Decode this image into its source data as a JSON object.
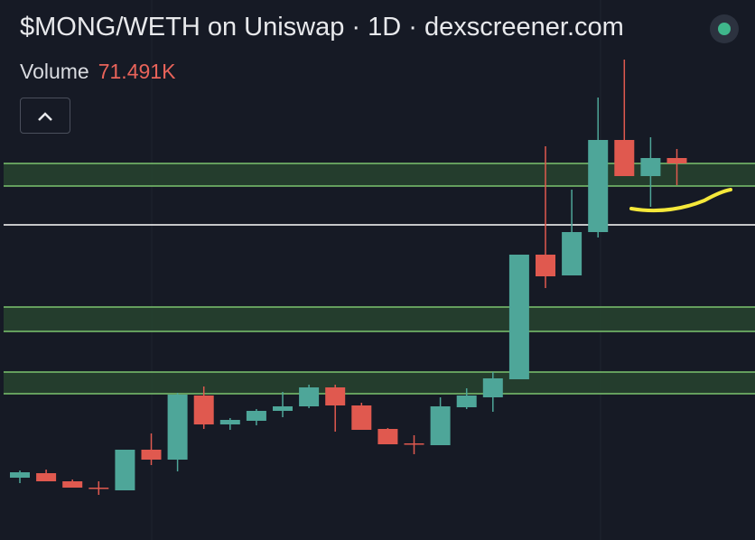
{
  "chart_data": {
    "type": "candlestick",
    "title": "$MONG/WETH on Uniswap · 1D · dexscreener.com",
    "volume_label": "Volume",
    "volume_value": "71.491K",
    "ylim": [
      0,
      598
    ],
    "up_color": "#4ea699",
    "down_color": "#e0594f",
    "open": [
      69,
      74,
      65,
      58,
      55,
      100,
      89,
      160,
      128,
      132,
      143,
      148,
      169,
      149,
      123,
      107,
      105,
      147,
      158,
      178,
      316,
      293,
      341,
      443,
      403,
      423
    ],
    "high": [
      77,
      78,
      67,
      65,
      100,
      118,
      163,
      170,
      135,
      145,
      164,
      172,
      172,
      152,
      124,
      116,
      158,
      168,
      186,
      316,
      436,
      388,
      490,
      532,
      446,
      433
    ],
    "low": [
      63,
      65,
      58,
      50,
      55,
      83,
      76,
      123,
      122,
      127,
      136,
      146,
      120,
      122,
      106,
      95,
      105,
      145,
      142,
      178,
      279,
      293,
      335,
      403,
      369,
      393
    ],
    "close": [
      75,
      65,
      58,
      57,
      100,
      89,
      161,
      128,
      133,
      143,
      148,
      169,
      149,
      122,
      106,
      106,
      148,
      160,
      179,
      316,
      292,
      341,
      443,
      403,
      423,
      417
    ],
    "bands": [
      {
        "from": 392,
        "to": 417
      },
      {
        "from": 231,
        "to": 258
      },
      {
        "from": 162,
        "to": 186
      }
    ],
    "band_fill": "#27442f",
    "band_edge": "#7cc46f",
    "level_line": 349,
    "level_color": "#ffffff"
  }
}
